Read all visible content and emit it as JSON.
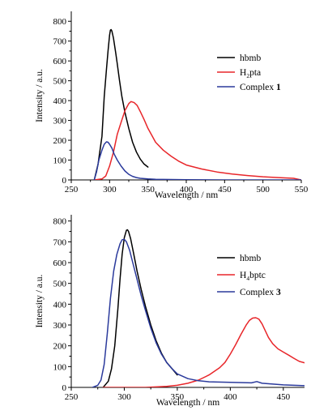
{
  "chart_data": [
    {
      "type": "line",
      "xlabel": "Wavelength / nm",
      "ylabel": "Intensity / a.u.",
      "xlim": [
        250,
        550
      ],
      "ylim": [
        0,
        850
      ],
      "xticks": [
        "250",
        "300",
        "350",
        "400",
        "450",
        "500",
        "550"
      ],
      "yticks": [
        "0",
        "100",
        "200",
        "300",
        "400",
        "500",
        "600",
        "700",
        "800"
      ],
      "legend_position": "top-right",
      "legend": [
        {
          "text": "hbmb",
          "color": "#000000"
        },
        {
          "prefix": "H",
          "sub": "2",
          "suffix": "pta",
          "color": "#e8262a"
        },
        {
          "text": "Complex ",
          "bold": "1",
          "color": "#2b3a9c"
        }
      ],
      "series": [
        {
          "name": "hbmb",
          "color": "#000000",
          "x": [
            280,
            285,
            290,
            293,
            296,
            298,
            300,
            301,
            302,
            303,
            305,
            308,
            310,
            313,
            316,
            320,
            325,
            330,
            335,
            340,
            345,
            350
          ],
          "y": [
            0,
            80,
            220,
            420,
            560,
            650,
            730,
            755,
            758,
            750,
            715,
            640,
            585,
            500,
            420,
            340,
            260,
            190,
            140,
            105,
            80,
            65
          ]
        },
        {
          "name": "H2pta",
          "color": "#e8262a",
          "x": [
            280,
            290,
            295,
            300,
            305,
            310,
            315,
            320,
            325,
            328,
            332,
            336,
            340,
            345,
            350,
            355,
            360,
            370,
            380,
            390,
            400,
            420,
            440,
            460,
            480,
            500,
            520,
            540,
            550
          ],
          "y": [
            0,
            5,
            20,
            70,
            140,
            230,
            290,
            350,
            385,
            395,
            390,
            375,
            345,
            305,
            260,
            225,
            190,
            150,
            120,
            95,
            75,
            55,
            40,
            30,
            22,
            16,
            12,
            8,
            0
          ]
        },
        {
          "name": "Complex 1",
          "color": "#2b3a9c",
          "x": [
            280,
            283,
            286,
            290,
            293,
            296,
            298,
            300,
            303,
            306,
            310,
            315,
            320,
            325,
            330,
            335,
            340,
            350,
            360,
            380,
            400,
            450,
            500,
            550
          ],
          "y": [
            0,
            40,
            100,
            150,
            180,
            192,
            190,
            180,
            160,
            130,
            100,
            70,
            45,
            28,
            18,
            12,
            8,
            5,
            3,
            2,
            1,
            0,
            0,
            0
          ]
        }
      ]
    },
    {
      "type": "line",
      "xlabel": "Wavelength / nm",
      "ylabel": "Intensity / a.u.",
      "xlim": [
        250,
        470
      ],
      "ylim": [
        0,
        830
      ],
      "xticks": [
        "250",
        "300",
        "350",
        "400",
        "450"
      ],
      "yticks": [
        "0",
        "100",
        "200",
        "300",
        "400",
        "500",
        "600",
        "700",
        "800"
      ],
      "legend_position": "right",
      "legend": [
        {
          "text": "hbmb",
          "color": "#000000"
        },
        {
          "prefix": "H",
          "sub": "4",
          "suffix": "bptc",
          "color": "#e8262a"
        },
        {
          "text": "Complex ",
          "bold": "3",
          "color": "#2b3a9c"
        }
      ],
      "series": [
        {
          "name": "hbmb",
          "color": "#000000",
          "x": [
            280,
            285,
            288,
            291,
            294,
            296,
            298,
            300,
            302,
            303,
            304,
            306,
            309,
            312,
            316,
            320,
            325,
            330,
            335,
            340,
            345,
            350
          ],
          "y": [
            0,
            30,
            90,
            200,
            380,
            520,
            640,
            720,
            755,
            758,
            750,
            715,
            640,
            560,
            470,
            390,
            300,
            225,
            165,
            120,
            90,
            60
          ]
        },
        {
          "name": "H4bptc",
          "color": "#e8262a",
          "x": [
            280,
            300,
            320,
            340,
            350,
            360,
            370,
            380,
            390,
            395,
            400,
            405,
            410,
            415,
            418,
            421,
            424,
            427,
            430,
            433,
            436,
            440,
            445,
            450,
            455,
            460,
            465,
            470
          ],
          "y": [
            0,
            0,
            0,
            5,
            10,
            20,
            35,
            60,
            95,
            120,
            160,
            205,
            255,
            300,
            322,
            333,
            335,
            328,
            305,
            272,
            240,
            210,
            185,
            170,
            155,
            140,
            125,
            118
          ]
        },
        {
          "name": "Complex 3",
          "color": "#2b3a9c",
          "x": [
            270,
            275,
            278,
            281,
            284,
            287,
            290,
            293,
            296,
            298,
            300,
            302,
            305,
            308,
            312,
            316,
            320,
            325,
            330,
            335,
            340,
            345,
            350,
            360,
            370,
            380,
            400,
            420,
            425,
            430,
            440,
            450,
            460,
            470
          ],
          "y": [
            0,
            10,
            35,
            110,
            260,
            430,
            560,
            640,
            690,
            710,
            712,
            700,
            660,
            600,
            520,
            440,
            370,
            285,
            215,
            160,
            120,
            90,
            65,
            42,
            32,
            27,
            24,
            22,
            28,
            20,
            16,
            12,
            10,
            8
          ]
        }
      ]
    }
  ]
}
